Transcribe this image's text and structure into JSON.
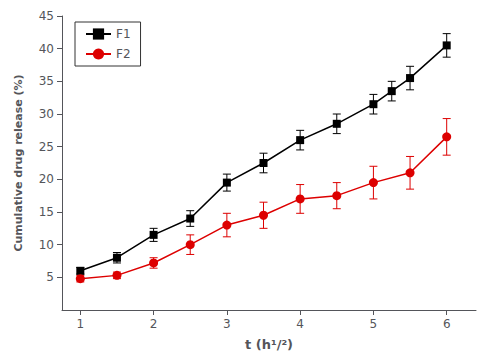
{
  "chart_data": {
    "type": "line",
    "xlabel": "t (h¹/²)",
    "ylabel": "Cumulative drug release (%)",
    "xlim": [
      0.75,
      6.4
    ],
    "xticks": [
      1,
      2,
      3,
      4,
      5,
      6
    ],
    "ylim": [
      0,
      45
    ],
    "yticks": [
      5,
      10,
      15,
      20,
      25,
      30,
      35,
      40,
      45
    ],
    "grid": false,
    "legend": "upper left",
    "series": [
      {
        "name": "F1",
        "color": "#000000",
        "marker": "square",
        "x": [
          1.0,
          1.5,
          2.0,
          2.5,
          3.0,
          3.5,
          4.0,
          4.5,
          5.0,
          5.25,
          5.5,
          6.0
        ],
        "values": [
          6.0,
          8.0,
          11.5,
          14.0,
          19.5,
          22.5,
          26.0,
          28.5,
          31.5,
          33.5,
          35.5,
          40.5
        ],
        "yerr": [
          0.5,
          0.8,
          1.0,
          1.2,
          1.3,
          1.5,
          1.5,
          1.5,
          1.5,
          1.5,
          1.8,
          1.8
        ]
      },
      {
        "name": "F2",
        "color": "#dd0000",
        "marker": "circle",
        "x": [
          1.0,
          1.5,
          2.0,
          2.5,
          3.0,
          3.5,
          4.0,
          4.5,
          5.0,
          5.5,
          6.0
        ],
        "values": [
          4.8,
          5.3,
          7.2,
          10.0,
          13.0,
          14.5,
          17.0,
          17.5,
          19.5,
          21.0,
          26.5
        ],
        "yerr": [
          0.5,
          0.5,
          0.8,
          1.5,
          1.8,
          2.0,
          2.2,
          2.0,
          2.5,
          2.5,
          2.8
        ]
      }
    ]
  }
}
